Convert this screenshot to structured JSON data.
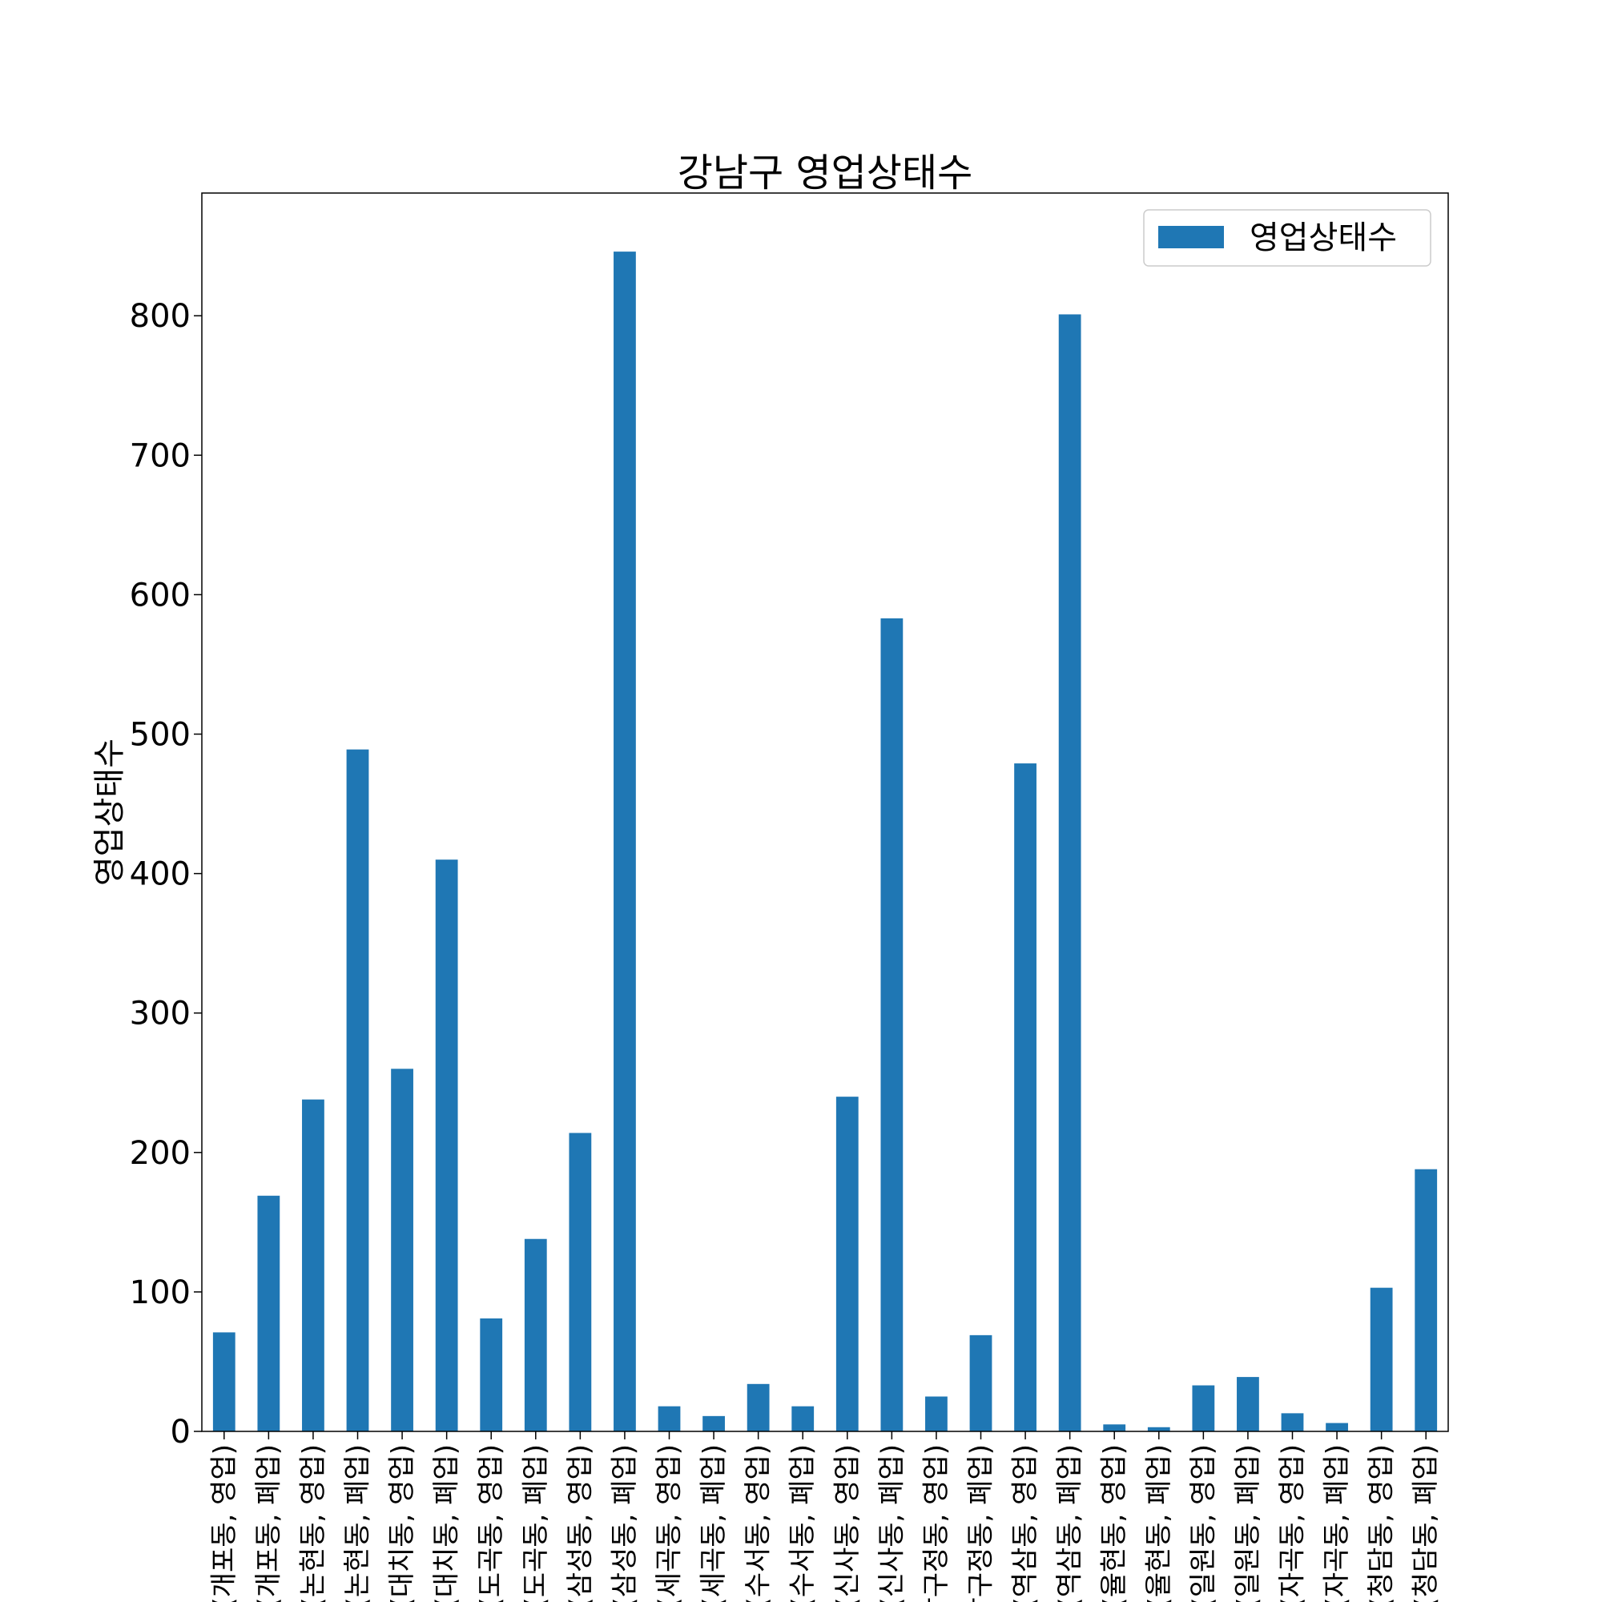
{
  "chart_data": {
    "type": "bar",
    "title": "강남구 영업상태수",
    "ylabel": "영업상태수",
    "xlabel": "",
    "ylim": [
      0,
      888
    ],
    "yticks": [
      0,
      100,
      200,
      300,
      400,
      500,
      600,
      700,
      800
    ],
    "legend": {
      "position": "top-right",
      "entries": [
        "영업상태수"
      ]
    },
    "colors": {
      "bar": "#1f77b4"
    },
    "categories": [
      "(개포동, 영업)",
      "(개포동, 폐업)",
      "(논현동, 영업)",
      "(논현동, 폐업)",
      "(대치동, 영업)",
      "(대치동, 폐업)",
      "(도곡동, 영업)",
      "(도곡동, 폐업)",
      "(삼성동, 영업)",
      "(삼성동, 폐업)",
      "(세곡동, 영업)",
      "(세곡동, 폐업)",
      "(수서동, 영업)",
      "(수서동, 폐업)",
      "(신사동, 영업)",
      "(신사동, 폐업)",
      "(압구정동, 영업)",
      "(압구정동, 폐업)",
      "(역삼동, 영업)",
      "(역삼동, 폐업)",
      "(율현동, 영업)",
      "(율현동, 폐업)",
      "(일원동, 영업)",
      "(일원동, 폐업)",
      "(자곡동, 영업)",
      "(자곡동, 폐업)",
      "(청담동, 영업)",
      "(청담동, 폐업)"
    ],
    "values": [
      71,
      169,
      238,
      489,
      260,
      410,
      81,
      138,
      214,
      846,
      18,
      11,
      34,
      18,
      240,
      583,
      25,
      69,
      479,
      801,
      5,
      3,
      33,
      39,
      13,
      6,
      103,
      188
    ]
  }
}
